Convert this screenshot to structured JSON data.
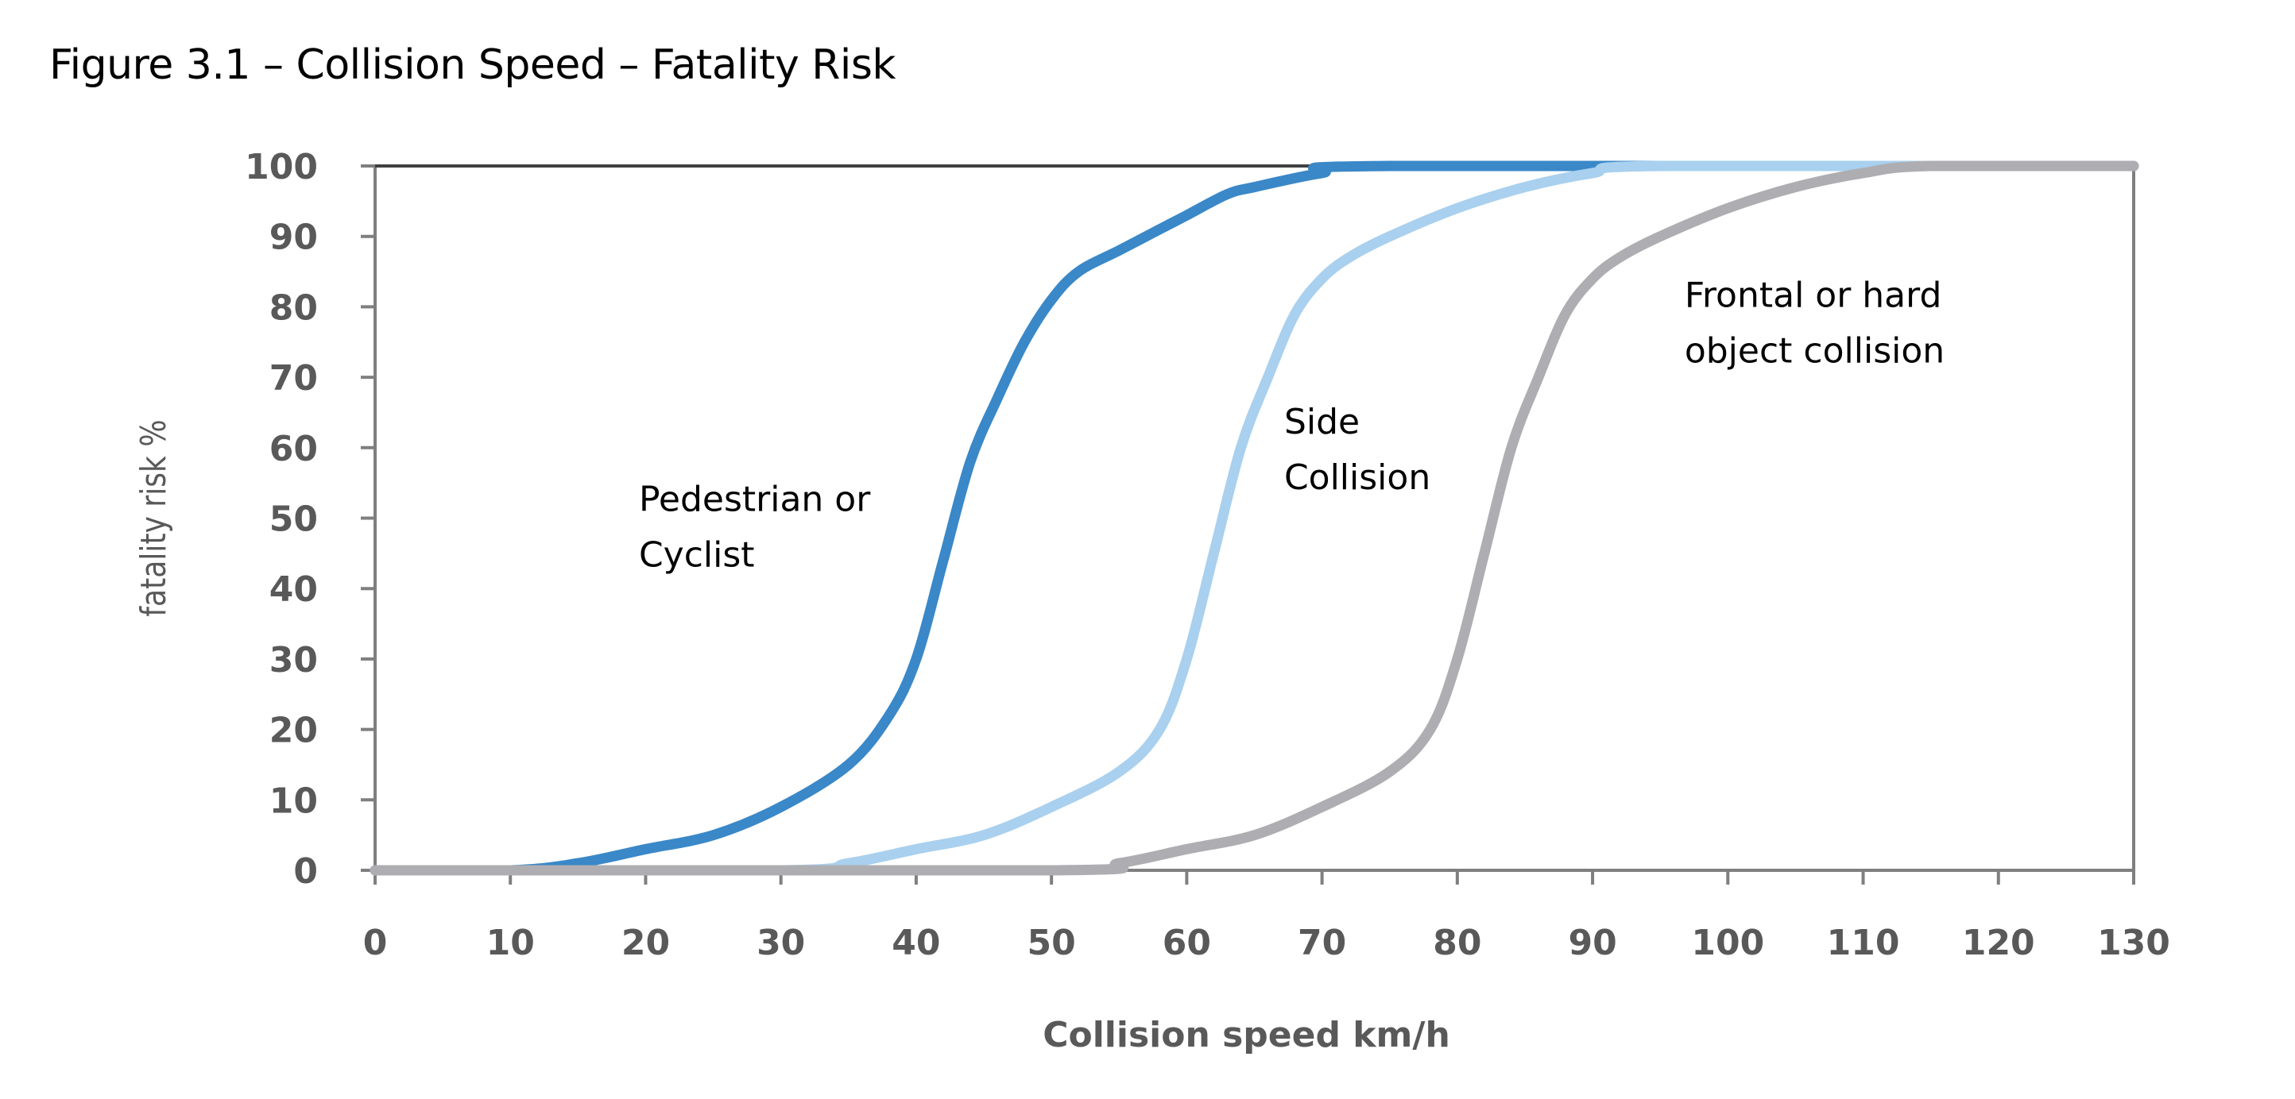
{
  "figure_title": "Figure 3.1 – Collision Speed – Fatality Risk",
  "chart_data": {
    "type": "line",
    "title": "Figure 3.1 – Collision Speed – Fatality Risk",
    "xlabel": "Collision speed km/h",
    "ylabel": "fatality risk %",
    "xlim": [
      0,
      130
    ],
    "ylim": [
      0,
      100
    ],
    "x_ticks": [
      0,
      10,
      20,
      30,
      40,
      50,
      60,
      70,
      80,
      90,
      100,
      110,
      120,
      130
    ],
    "y_ticks": [
      0,
      10,
      20,
      30,
      40,
      50,
      60,
      70,
      80,
      90,
      100
    ],
    "grid": false,
    "legend": "none",
    "series": [
      {
        "color": "#3a88c8",
        "points": [
          [
            0,
            0
          ],
          [
            10,
            0
          ],
          [
            15,
            1
          ],
          [
            20,
            3
          ],
          [
            25,
            5
          ],
          [
            30,
            9
          ],
          [
            35,
            15
          ],
          [
            38,
            22
          ],
          [
            40,
            30
          ],
          [
            42,
            44
          ],
          [
            44,
            58
          ],
          [
            46,
            67
          ],
          [
            48,
            75
          ],
          [
            50,
            81
          ],
          [
            52,
            85
          ],
          [
            55,
            88
          ],
          [
            58,
            91
          ],
          [
            60,
            93
          ],
          [
            63,
            96
          ],
          [
            65,
            97
          ],
          [
            70,
            99
          ],
          [
            75,
            100
          ],
          [
            130,
            100
          ]
        ],
        "label_lines": [
          "Pedestrian or",
          "Cyclist"
        ],
        "label_x": 19.5,
        "label_y": 51
      },
      {
        "color": "#a9d0ee",
        "points": [
          [
            0,
            0
          ],
          [
            30,
            0
          ],
          [
            35,
            1
          ],
          [
            40,
            3
          ],
          [
            45,
            5
          ],
          [
            50,
            9
          ],
          [
            55,
            14
          ],
          [
            58,
            20
          ],
          [
            60,
            30
          ],
          [
            62,
            45
          ],
          [
            64,
            60
          ],
          [
            66,
            70
          ],
          [
            68,
            79
          ],
          [
            70,
            84
          ],
          [
            72,
            87
          ],
          [
            75,
            90
          ],
          [
            80,
            94
          ],
          [
            85,
            97
          ],
          [
            90,
            99
          ],
          [
            95,
            100
          ],
          [
            130,
            100
          ]
        ],
        "label_lines": [
          "Side",
          "Collision"
        ],
        "label_x": 67.2,
        "label_y": 62
      },
      {
        "color": "#aeaeb2",
        "points": [
          [
            0,
            0
          ],
          [
            50,
            0
          ],
          [
            55,
            1
          ],
          [
            60,
            3
          ],
          [
            65,
            5
          ],
          [
            70,
            9
          ],
          [
            75,
            14
          ],
          [
            78,
            20
          ],
          [
            80,
            30
          ],
          [
            82,
            45
          ],
          [
            84,
            60
          ],
          [
            86,
            70
          ],
          [
            88,
            79
          ],
          [
            90,
            84
          ],
          [
            92,
            87
          ],
          [
            95,
            90
          ],
          [
            100,
            94
          ],
          [
            105,
            97
          ],
          [
            110,
            99
          ],
          [
            115,
            100
          ],
          [
            130,
            100
          ]
        ],
        "label_lines": [
          "Frontal or hard",
          "object collision"
        ],
        "label_x": 96.8,
        "label_y": 80
      }
    ]
  }
}
